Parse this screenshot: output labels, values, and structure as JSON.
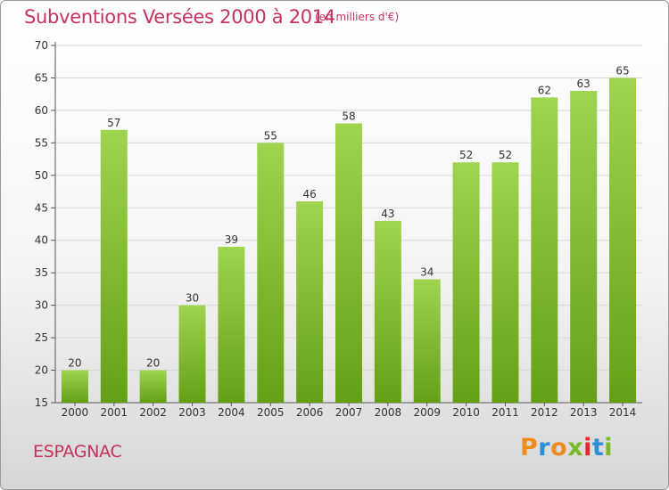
{
  "header": {
    "title": "Subventions Versées 2000 à 2014",
    "subtitle": "(en milliers d'€)"
  },
  "footer": {
    "commune": "ESPAGNAC",
    "logo_text": "Proxiti",
    "logo_colors": [
      "#f08c1e",
      "#2a8fd6",
      "#f08c1e",
      "#7ab829",
      "#e8262d",
      "#2a8fd6",
      "#7ab829"
    ]
  },
  "colors": {
    "title": "#c8315f",
    "bar_light": "#9fd44e",
    "bar_dark": "#64a015",
    "grid": "#d8d8d8"
  },
  "chart_data": {
    "type": "bar",
    "categories": [
      "2000",
      "2001",
      "2002",
      "2003",
      "2004",
      "2005",
      "2006",
      "2007",
      "2008",
      "2009",
      "2010",
      "2011",
      "2012",
      "2013",
      "2014"
    ],
    "values": [
      20,
      57,
      20,
      30,
      39,
      55,
      46,
      58,
      43,
      34,
      52,
      52,
      62,
      63,
      65
    ],
    "ylim": [
      15,
      70
    ],
    "yticks": [
      15,
      20,
      25,
      30,
      35,
      40,
      45,
      50,
      55,
      60,
      65,
      70
    ],
    "grid": true,
    "data_labels": true
  }
}
